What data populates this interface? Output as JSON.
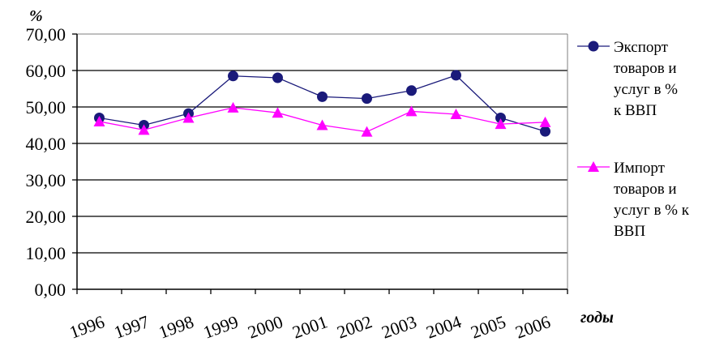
{
  "chart_data": {
    "type": "line",
    "ylabel": "%",
    "xlabel": "годы",
    "ylim": [
      0,
      70
    ],
    "yticks": [
      "0,00",
      "10,00",
      "20,00",
      "30,00",
      "40,00",
      "50,00",
      "60,00",
      "70,00"
    ],
    "categories": [
      "1996",
      "1997",
      "1998",
      "1999",
      "2000",
      "2001",
      "2002",
      "2003",
      "2004",
      "2005",
      "2006"
    ],
    "grid": true,
    "legend_position": "right",
    "series": [
      {
        "name": "Экспорт товаров и услуг в % к ВВП",
        "legend_lines": [
          "Экспорт",
          "товаров и",
          "услуг в %",
          "к ВВП"
        ],
        "color": "#1a1a7a",
        "marker": "circle",
        "values": [
          47.0,
          45.0,
          48.2,
          58.5,
          58.0,
          52.8,
          52.3,
          54.5,
          58.7,
          47.0,
          43.3
        ]
      },
      {
        "name": "Импорт товаров и услуг в % к ВВП",
        "legend_lines": [
          "Импорт",
          "товаров и",
          "услуг в % к",
          "ВВП"
        ],
        "color": "#ff00ff",
        "marker": "triangle",
        "values": [
          46.0,
          43.7,
          47.0,
          49.8,
          48.4,
          45.0,
          43.2,
          48.8,
          48.0,
          45.3,
          45.8
        ]
      }
    ]
  }
}
